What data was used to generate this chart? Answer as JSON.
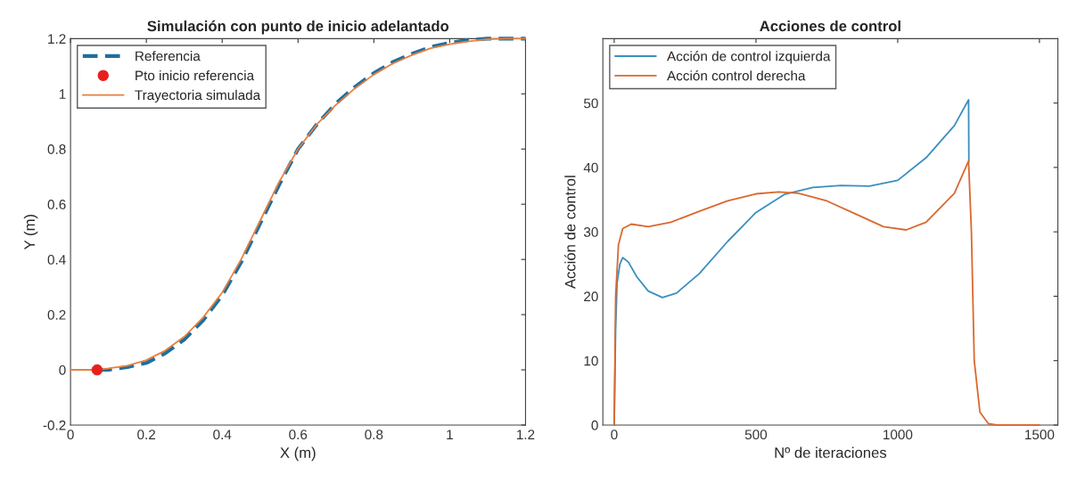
{
  "chart_data": [
    {
      "type": "line",
      "title": "Simulación con punto de inicio adelantado",
      "xlabel": "X (m)",
      "ylabel": "Y (m)",
      "xlim": [
        0,
        1.2
      ],
      "ylim": [
        -0.2,
        1.2
      ],
      "xticks": [
        0,
        0.2,
        0.4,
        0.6,
        0.8,
        1,
        1.2
      ],
      "yticks": [
        -0.2,
        0,
        0.2,
        0.4,
        0.6,
        0.8,
        1,
        1.2
      ],
      "grid": false,
      "legend": "top left",
      "series": [
        {
          "name": "Referencia",
          "color": "#1f6f9f",
          "line_style": "dashed",
          "marker": "none",
          "x": [
            0.07,
            0.1,
            0.15,
            0.2,
            0.25,
            0.3,
            0.35,
            0.4,
            0.45,
            0.5,
            0.55,
            0.6,
            0.65,
            0.7,
            0.75,
            0.8,
            0.85,
            0.9,
            0.95,
            1.0,
            1.05,
            1.1,
            1.2
          ],
          "values": [
            0,
            0,
            0.01,
            0.025,
            0.06,
            0.11,
            0.18,
            0.27,
            0.39,
            0.53,
            0.67,
            0.8,
            0.89,
            0.965,
            1.025,
            1.075,
            1.115,
            1.145,
            1.17,
            1.185,
            1.195,
            1.2,
            1.2
          ]
        },
        {
          "name": "Pto inicio referencia",
          "type": "scatter",
          "color": "#e8201c",
          "marker": "circle",
          "x": [
            0.07
          ],
          "values": [
            0
          ]
        },
        {
          "name": "Trayectoria simulada",
          "color": "#e8803f",
          "line_style": "solid",
          "marker": "none",
          "x": [
            0,
            0.07,
            0.1,
            0.15,
            0.2,
            0.25,
            0.3,
            0.35,
            0.4,
            0.45,
            0.5,
            0.55,
            0.6,
            0.65,
            0.7,
            0.75,
            0.8,
            0.85,
            0.9,
            0.95,
            1.0,
            1.05,
            1.1,
            1.15,
            1.2
          ],
          "values": [
            0,
            0,
            0.005,
            0.015,
            0.035,
            0.07,
            0.12,
            0.19,
            0.28,
            0.4,
            0.54,
            0.68,
            0.8,
            0.89,
            0.96,
            1.02,
            1.07,
            1.11,
            1.14,
            1.165,
            1.18,
            1.19,
            1.198,
            1.2,
            1.2
          ]
        }
      ]
    },
    {
      "type": "line",
      "title": "Acciones de control",
      "xlabel": "Nº de iteraciones",
      "ylabel": "Acción de control",
      "xlim": [
        -40,
        1565
      ],
      "ylim": [
        0,
        60
      ],
      "xticks": [
        0,
        500,
        1000,
        1500
      ],
      "yticks": [
        0,
        10,
        20,
        30,
        40,
        50
      ],
      "grid": false,
      "legend": "top left",
      "series": [
        {
          "name": "Acción de control izquierda",
          "color": "#3a8fc0",
          "line_style": "solid",
          "marker": "none",
          "x": [
            0,
            5,
            10,
            20,
            30,
            50,
            80,
            120,
            170,
            220,
            300,
            400,
            500,
            600,
            700,
            800,
            900,
            1000,
            1100,
            1200,
            1250,
            1251
          ],
          "values": [
            0,
            15,
            22,
            25,
            26,
            25.3,
            23,
            20.8,
            19.8,
            20.5,
            23.5,
            28.5,
            33,
            35.8,
            36.9,
            37.2,
            37.1,
            38,
            41.5,
            46.5,
            50.5,
            41
          ]
        },
        {
          "name": "Acción control derecha",
          "color": "#d9692e",
          "line_style": "solid",
          "marker": "none",
          "x": [
            0,
            5,
            15,
            30,
            60,
            120,
            200,
            300,
            400,
            500,
            580,
            650,
            750,
            850,
            950,
            1030,
            1100,
            1200,
            1250,
            1260,
            1270,
            1290,
            1320,
            1350,
            1500
          ],
          "values": [
            0,
            20,
            28,
            30.5,
            31.2,
            30.8,
            31.5,
            33.2,
            34.8,
            35.9,
            36.2,
            36,
            34.8,
            32.8,
            30.8,
            30.3,
            31.5,
            36,
            41,
            30,
            10,
            2,
            0.2,
            0,
            0
          ]
        }
      ]
    }
  ]
}
